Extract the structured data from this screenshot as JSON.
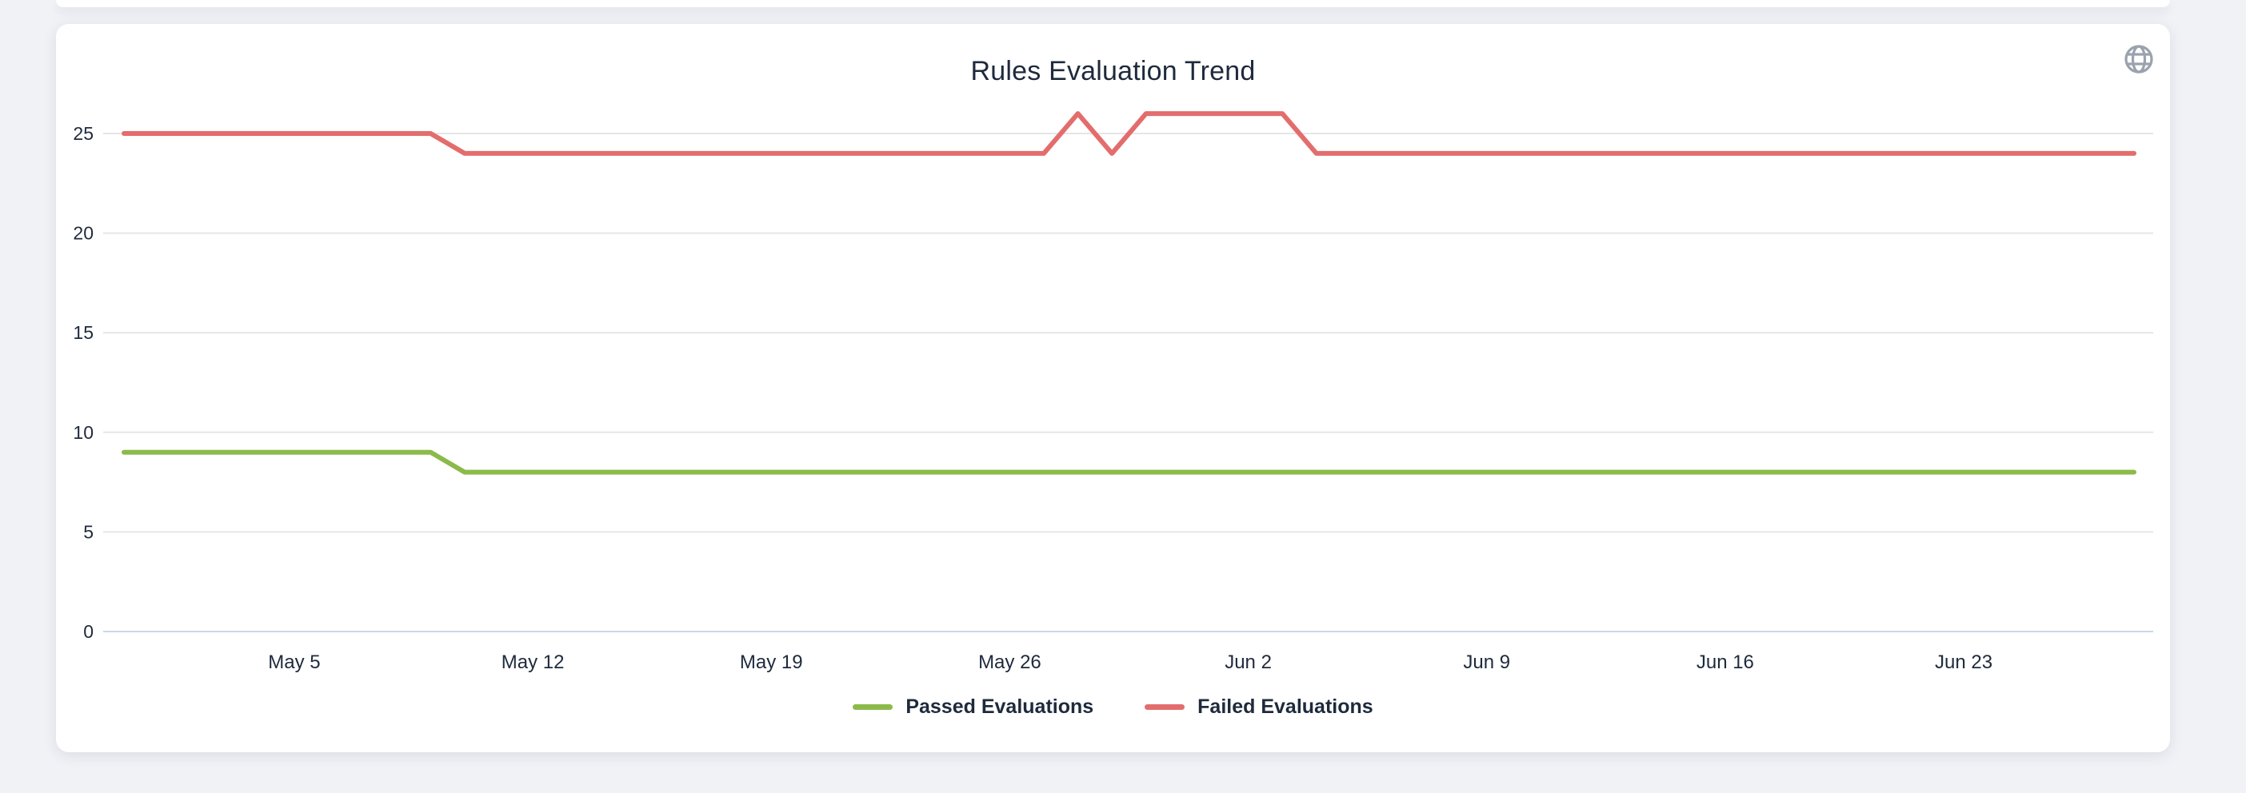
{
  "page": {
    "background": "#f0f2f6"
  },
  "card": {
    "background": "#ffffff"
  },
  "header": {
    "title": "Rules Evaluation Trend",
    "icon": "globe-icon"
  },
  "colors": {
    "text": "#1e2a3c",
    "grid_line": "#e6e6e6",
    "axis_line": "#ccd6eb",
    "icon_gray": "#9aa2ad",
    "passed_green": "#8cba4a",
    "failed_red": "#e36d6d"
  },
  "chart_data": {
    "type": "line",
    "title": "Rules Evaluation Trend",
    "xlabel": "",
    "ylabel": "",
    "ylim": [
      0,
      27
    ],
    "grid": true,
    "legend_position": "bottom-center",
    "y_ticks": [
      0,
      5,
      10,
      15,
      20,
      25
    ],
    "x_tick_labels": [
      "May 5",
      "May 12",
      "May 19",
      "May 26",
      "Jun 2",
      "Jun 9",
      "Jun 16",
      "Jun 23"
    ],
    "x": [
      "Apr 30",
      "May 1",
      "May 2",
      "May 3",
      "May 4",
      "May 5",
      "May 6",
      "May 7",
      "May 8",
      "May 9",
      "May 10",
      "May 11",
      "May 12",
      "May 13",
      "May 14",
      "May 15",
      "May 16",
      "May 17",
      "May 18",
      "May 19",
      "May 20",
      "May 21",
      "May 22",
      "May 23",
      "May 24",
      "May 25",
      "May 26",
      "May 27",
      "May 28",
      "May 29",
      "May 30",
      "May 31",
      "Jun 1",
      "Jun 2",
      "Jun 3",
      "Jun 4",
      "Jun 5",
      "Jun 6",
      "Jun 7",
      "Jun 8",
      "Jun 9",
      "Jun 10",
      "Jun 11",
      "Jun 12",
      "Jun 13",
      "Jun 14",
      "Jun 15",
      "Jun 16",
      "Jun 17",
      "Jun 18",
      "Jun 19",
      "Jun 20",
      "Jun 21",
      "Jun 22",
      "Jun 23",
      "Jun 24",
      "Jun 25",
      "Jun 26",
      "Jun 27",
      "Jun 28"
    ],
    "series": [
      {
        "name": "Passed Evaluations",
        "color": "#8cba4a",
        "values": [
          9,
          9,
          9,
          9,
          9,
          9,
          9,
          9,
          9,
          9,
          8,
          8,
          8,
          8,
          8,
          8,
          8,
          8,
          8,
          8,
          8,
          8,
          8,
          8,
          8,
          8,
          8,
          8,
          8,
          8,
          8,
          8,
          8,
          8,
          8,
          8,
          8,
          8,
          8,
          8,
          8,
          8,
          8,
          8,
          8,
          8,
          8,
          8,
          8,
          8,
          8,
          8,
          8,
          8,
          8,
          8,
          8,
          8,
          8,
          8
        ]
      },
      {
        "name": "Failed Evaluations",
        "color": "#e36d6d",
        "values": [
          25,
          25,
          25,
          25,
          25,
          25,
          25,
          25,
          25,
          25,
          24,
          24,
          24,
          24,
          24,
          24,
          24,
          24,
          24,
          24,
          24,
          24,
          24,
          24,
          24,
          24,
          24,
          24,
          26,
          24,
          26,
          26,
          26,
          26,
          26,
          24,
          24,
          24,
          24,
          24,
          24,
          24,
          24,
          24,
          24,
          24,
          24,
          24,
          24,
          24,
          24,
          24,
          24,
          24,
          24,
          24,
          24,
          24,
          24,
          24
        ]
      }
    ]
  }
}
